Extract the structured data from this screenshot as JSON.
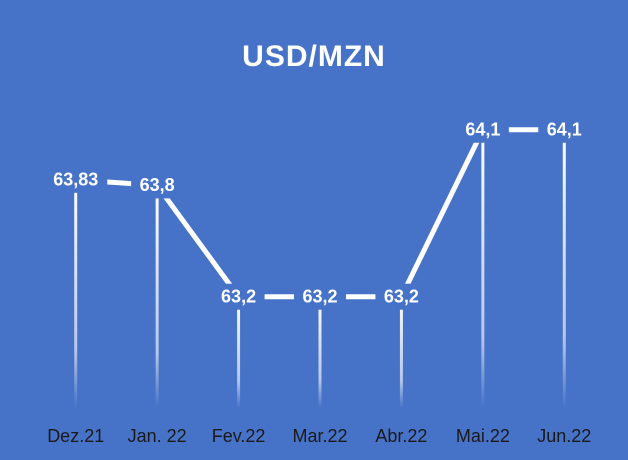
{
  "chart_data": {
    "type": "line",
    "title": "USD/MZN",
    "categories": [
      "Dez.21",
      "Jan. 22",
      "Fev.22",
      "Mar.22",
      "Abr.22",
      "Mai.22",
      "Jun.22"
    ],
    "values": [
      63.83,
      63.8,
      63.2,
      63.2,
      63.2,
      64.1,
      64.1
    ],
    "value_labels": [
      "63,83",
      "63,8",
      "63,2",
      "63,2",
      "63,2",
      "64,1",
      "64,1"
    ],
    "color": "#ffffff",
    "ylim": [
      62.6,
      64.6
    ]
  }
}
